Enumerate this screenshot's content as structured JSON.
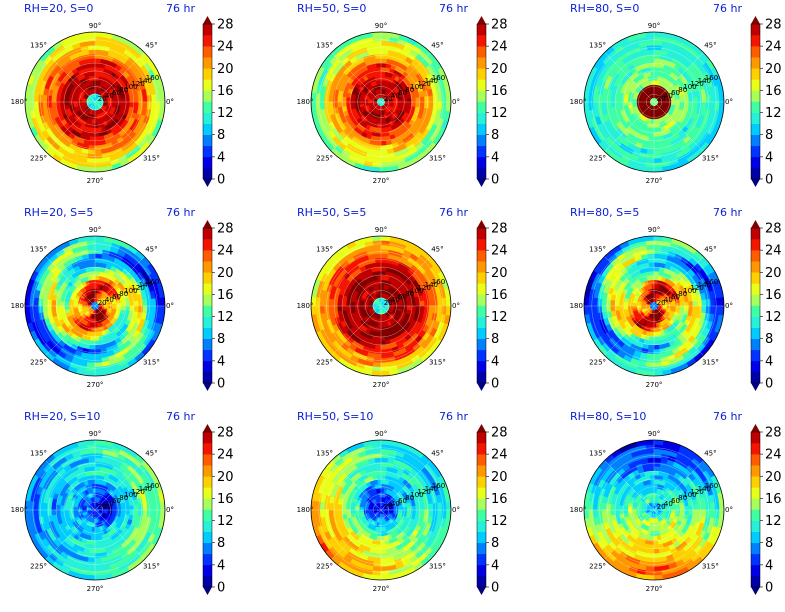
{
  "chart_data": [
    {
      "type": "heatmap",
      "title": "RH=20, S=0",
      "time_label": "76 hr",
      "pattern": "ring",
      "eye_radius": 0.12,
      "ring_intensity": 27,
      "ring_extent": 0.45,
      "rot": 0.4
    },
    {
      "type": "heatmap",
      "title": "RH=50, S=0",
      "time_label": "76 hr",
      "pattern": "ring",
      "eye_radius": 0.08,
      "ring_intensity": 27,
      "ring_extent": 0.35,
      "rot": 1.1
    },
    {
      "type": "heatmap",
      "title": "RH=80, S=0",
      "time_label": "76 hr",
      "pattern": "compact",
      "eye_radius": 0.07,
      "ring_intensity": 28,
      "ring_extent": 0.25,
      "rot": 0.2
    },
    {
      "type": "heatmap",
      "title": "RH=20, S=5",
      "time_label": "76 hr",
      "pattern": "spiral",
      "eye_radius": 0.06,
      "ring_intensity": 24,
      "ring_extent": 0.4,
      "rot": 2.2
    },
    {
      "type": "heatmap",
      "title": "RH=50, S=5",
      "time_label": "76 hr",
      "pattern": "ring",
      "eye_radius": 0.1,
      "ring_intensity": 28,
      "ring_extent": 0.5,
      "rot": 3.3
    },
    {
      "type": "heatmap",
      "title": "RH=80, S=5",
      "time_label": "76 hr",
      "pattern": "spiral",
      "eye_radius": 0.08,
      "ring_intensity": 27,
      "ring_extent": 0.35,
      "rot": 2.8
    },
    {
      "type": "heatmap",
      "title": "RH=20, S=10",
      "time_label": "76 hr",
      "pattern": "sheared",
      "eye_radius": 0.1,
      "ring_intensity": 12,
      "ring_extent": 0.4,
      "rot": 0.9
    },
    {
      "type": "heatmap",
      "title": "RH=50, S=10",
      "time_label": "76 hr",
      "pattern": "sheared_warm",
      "eye_radius": 0.1,
      "ring_intensity": 18,
      "ring_extent": 0.5,
      "rot": 2.0
    },
    {
      "type": "heatmap",
      "title": "RH=80, S=10",
      "time_label": "76 hr",
      "pattern": "sheared_cool",
      "eye_radius": 0.1,
      "ring_intensity": 16,
      "ring_extent": 0.5,
      "rot": 1.6
    }
  ],
  "axes": {
    "angle_ticks": [
      "90°",
      "45°",
      "0°",
      "315°",
      "270°",
      "225°",
      "180°",
      "135°"
    ],
    "radial_ticks": [
      "20",
      "40",
      "60",
      "80",
      "100",
      "120",
      "140",
      "160"
    ],
    "rlim": [
      0,
      180
    ]
  },
  "colorbar": {
    "ticks": [
      "0",
      "4",
      "8",
      "12",
      "16",
      "20",
      "24",
      "28"
    ],
    "vmin": 0,
    "vmax": 28,
    "levels": [
      0,
      2,
      4,
      6,
      8,
      10,
      12,
      14,
      16,
      18,
      20,
      22,
      24,
      26,
      28
    ],
    "colors": [
      "#0000a8",
      "#0000e6",
      "#0033ff",
      "#0080ff",
      "#00ccff",
      "#26f0d8",
      "#3fffa5",
      "#a6ff5a",
      "#e8ff1a",
      "#ffd000",
      "#ff9800",
      "#ff5c00",
      "#f51400",
      "#c00000"
    ],
    "over_color": "#800000",
    "under_color": "#000080"
  }
}
